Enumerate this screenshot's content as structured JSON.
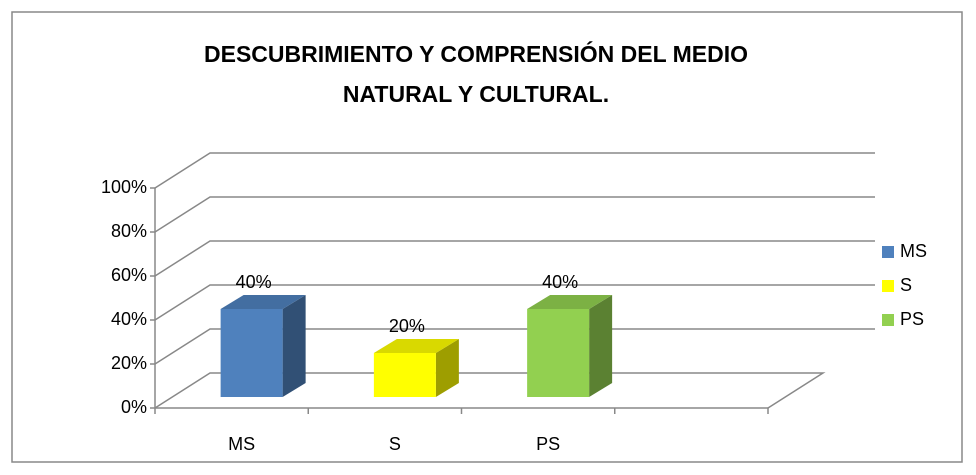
{
  "chart_data": {
    "type": "bar3d",
    "title": [
      "DESCUBRIMIENTO  Y COMPRENSIÓN DEL MEDIO",
      "NATURAL Y CULTURAL."
    ],
    "categories": [
      "MS",
      "S",
      "PS",
      null
    ],
    "series": [
      {
        "name": "MS",
        "color": "#4f81bd",
        "values": [
          40,
          null,
          null,
          null
        ],
        "value_labels": [
          "40%",
          null,
          null,
          null
        ]
      },
      {
        "name": "S",
        "color": "#ffff00",
        "values": [
          null,
          20,
          null,
          null
        ],
        "value_labels": [
          null,
          "20%",
          null,
          null
        ]
      },
      {
        "name": "PS",
        "color": "#92d050",
        "values": [
          null,
          null,
          40,
          null
        ],
        "value_labels": [
          null,
          null,
          "40%",
          null
        ]
      }
    ],
    "ylim": [
      0,
      100
    ],
    "yticks": [
      {
        "value": 0,
        "label": "0%"
      },
      {
        "value": 20,
        "label": "20%"
      },
      {
        "value": 40,
        "label": "40%"
      },
      {
        "value": 60,
        "label": "60%"
      },
      {
        "value": 80,
        "label": "80%"
      },
      {
        "value": 100,
        "label": "100%"
      }
    ],
    "grid": true,
    "legend": "right"
  }
}
